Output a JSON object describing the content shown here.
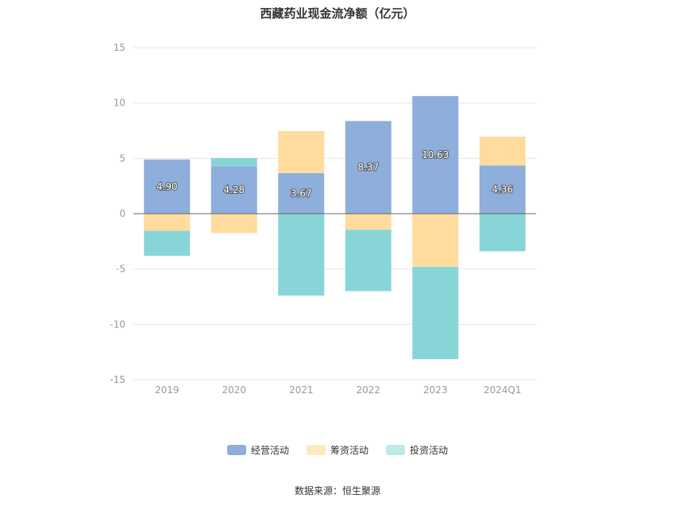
{
  "chart_data": {
    "type": "bar",
    "stacked": true,
    "title": "西藏药业现金流净额（亿元）",
    "categories": [
      "2019",
      "2020",
      "2021",
      "2022",
      "2023",
      "2024Q1"
    ],
    "series": [
      {
        "name": "经营活动",
        "color": "#8eaedb",
        "values": [
          4.9,
          4.28,
          3.67,
          8.37,
          10.63,
          4.36
        ],
        "show_labels": true
      },
      {
        "name": "筹资活动",
        "color": "#ffdc9e",
        "values": [
          -1.55,
          -1.75,
          3.8,
          -1.45,
          -4.8,
          2.6
        ],
        "show_labels": false
      },
      {
        "name": "投资活动",
        "color": "#88d5d8",
        "values": [
          -2.25,
          0.75,
          -7.4,
          -5.55,
          -8.35,
          -3.4
        ],
        "show_labels": false
      }
    ],
    "ylim": [
      -15,
      15
    ],
    "yticks": [
      15,
      10,
      5,
      0,
      -5,
      -10,
      -15
    ],
    "grid": true,
    "legend_position": "bottom"
  },
  "source": "数据来源：恒生聚源"
}
